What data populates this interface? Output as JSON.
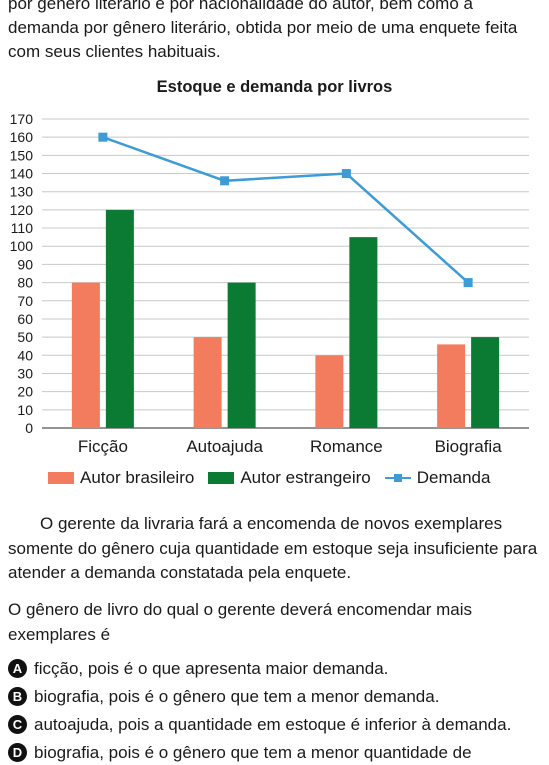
{
  "intro_text": "por gênero literário e por nacionalidade do autor, bem como a demanda por gênero literário, obtida por meio de uma enquete feita com seus clientes habituais.",
  "chart_data": {
    "type": "bar",
    "title": "Estoque e demanda por livros",
    "categories": [
      "Ficção",
      "Autoajuda",
      "Romance",
      "Biografia"
    ],
    "series": [
      {
        "name": "Autor brasileiro",
        "type": "bar",
        "color": "#f47c5e",
        "values": [
          80,
          50,
          40,
          46
        ]
      },
      {
        "name": "Autor estrangeiro",
        "type": "bar",
        "color": "#0b7a33",
        "values": [
          120,
          80,
          105,
          50
        ]
      },
      {
        "name": "Demanda",
        "type": "line",
        "color": "#3d9bd5",
        "values": [
          160,
          136,
          140,
          80
        ]
      }
    ],
    "ylim": [
      0,
      170
    ],
    "yticks": [
      0,
      10,
      20,
      30,
      40,
      50,
      60,
      70,
      80,
      90,
      100,
      110,
      120,
      130,
      140,
      150,
      160,
      170
    ],
    "grid": true,
    "legend_position": "bottom"
  },
  "paragraph1": "O gerente da livraria fará a encomenda de novos exemplares somente do gênero cuja quantidade em estoque seja insuficiente para atender a demanda constatada pela enquete.",
  "paragraph2": "O gênero de livro do qual o gerente deverá encomendar mais exemplares é",
  "options": [
    {
      "letter": "A",
      "text": "ficção, pois é o que apresenta maior demanda."
    },
    {
      "letter": "B",
      "text": "biografia, pois é o gênero que tem a menor demanda."
    },
    {
      "letter": "C",
      "text": "autoajuda, pois a quantidade em estoque é inferior à demanda."
    },
    {
      "letter": "D",
      "text": "biografia, pois é o gênero que tem a menor quantidade de"
    }
  ]
}
